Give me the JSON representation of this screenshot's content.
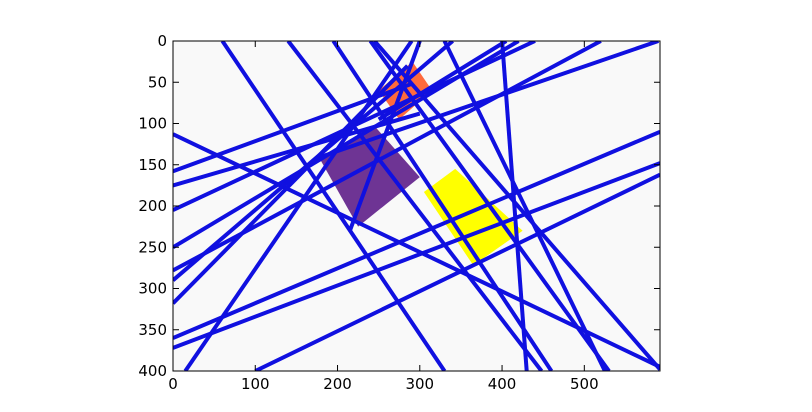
{
  "chart_data": {
    "type": "scatter",
    "xlim": [
      0,
      592
    ],
    "ylim": [
      400,
      0
    ],
    "y_axis_inverted": true,
    "grid": false,
    "background": "#f9f9f9",
    "x_ticks": [
      0,
      100,
      200,
      300,
      400,
      500
    ],
    "y_ticks": [
      0,
      50,
      100,
      150,
      200,
      250,
      300,
      350,
      400
    ],
    "line_color": "#1010e0",
    "lines": [
      [
        [
          0,
          113
        ],
        [
          592,
          395
        ]
      ],
      [
        [
          60,
          0
        ],
        [
          330,
          400
        ]
      ],
      [
        [
          140,
          0
        ],
        [
          448,
          400
        ]
      ],
      [
        [
          245,
          0
        ],
        [
          592,
          398
        ]
      ],
      [
        [
          240,
          0
        ],
        [
          530,
          400
        ]
      ],
      [
        [
          195,
          0
        ],
        [
          460,
          400
        ]
      ],
      [
        [
          330,
          0
        ],
        [
          525,
          400
        ]
      ],
      [
        [
          0,
          158
        ],
        [
          290,
          52
        ]
      ],
      [
        [
          0,
          175
        ],
        [
          300,
          88
        ]
      ],
      [
        [
          0,
          205
        ],
        [
          440,
          0
        ]
      ],
      [
        [
          0,
          250
        ],
        [
          420,
          0
        ]
      ],
      [
        [
          0,
          278
        ],
        [
          520,
          0
        ]
      ],
      [
        [
          0,
          290
        ],
        [
          340,
          0
        ]
      ],
      [
        [
          0,
          318
        ],
        [
          285,
          30
        ]
      ],
      [
        [
          0,
          360
        ],
        [
          592,
          110
        ]
      ],
      [
        [
          0,
          372
        ],
        [
          592,
          148
        ]
      ],
      [
        [
          100,
          400
        ],
        [
          592,
          162
        ]
      ],
      [
        [
          15,
          400
        ],
        [
          290,
          0
        ]
      ],
      [
        [
          300,
          0
        ],
        [
          215,
          230
        ]
      ],
      [
        [
          405,
          0
        ],
        [
          250,
          95
        ]
      ],
      [
        [
          400,
          0
        ],
        [
          430,
          400
        ]
      ],
      [
        [
          175,
          142
        ],
        [
          590,
          0
        ]
      ]
    ],
    "polygons": [
      {
        "color": "#ff6a3c",
        "points": [
          [
            250,
            60
          ],
          [
            291,
            25
          ],
          [
            315,
            60
          ],
          [
            275,
            95
          ]
        ]
      },
      {
        "color": "#6e3494",
        "points": [
          [
            178,
            142
          ],
          [
            245,
            103
          ],
          [
            300,
            165
          ],
          [
            225,
            225
          ]
        ]
      },
      {
        "color": "#ffff00",
        "points": [
          [
            305,
            183
          ],
          [
            343,
            155
          ],
          [
            425,
            230
          ],
          [
            365,
            272
          ]
        ]
      }
    ]
  }
}
